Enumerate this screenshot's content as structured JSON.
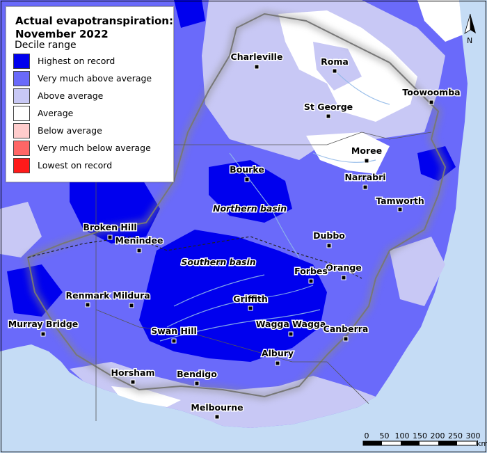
{
  "title_line1": "Actual evapotranspiration:",
  "title_line2": "November 2022",
  "legend_heading": "Decile range",
  "legend": [
    {
      "label": "Highest on record",
      "color": "#0000ee"
    },
    {
      "label": "Very much above average",
      "color": "#6a6afa"
    },
    {
      "label": "Above average",
      "color": "#c8c8f5"
    },
    {
      "label": "Average",
      "color": "#ffffff"
    },
    {
      "label": "Below average",
      "color": "#ffcccc"
    },
    {
      "label": "Very much below average",
      "color": "#ff6666"
    },
    {
      "label": "Lowest on record",
      "color": "#ff1a1a"
    }
  ],
  "towns": [
    "Charleville",
    "Roma",
    "Toowoomba",
    "St George",
    "Moree",
    "Bourke",
    "Narrabri",
    "Tamworth",
    "Broken Hill",
    "Menindee",
    "Dubbo",
    "Orange",
    "Forbes",
    "Renmark",
    "Mildura",
    "Griffith",
    "Murray Bridge",
    "Swan Hill",
    "Wagga Wagga",
    "Canberra",
    "Albury",
    "Horsham",
    "Bendigo",
    "Melbourne"
  ],
  "basins": [
    "Northern basin",
    "Southern basin"
  ],
  "north_label": "N",
  "scale": {
    "ticks": [
      "0",
      "50",
      "100",
      "150",
      "200",
      "250",
      "300"
    ],
    "unit": "km"
  },
  "colors": {
    "ocean": "#c5dcf5",
    "outside": "#e8e8f0"
  }
}
